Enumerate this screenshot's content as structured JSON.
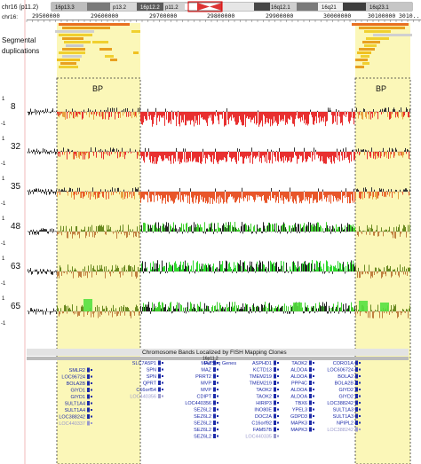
{
  "header": {
    "chr_label": "chr16 (p11.2)",
    "band_labels": [
      "16p13.3",
      "p13.2",
      "16p12.2",
      "p11.2",
      "16q12.1",
      "16q21",
      "16q23.1"
    ],
    "pos_label": "chr16:",
    "positions": [
      "29500000",
      "29600000",
      "29700000",
      "29800000",
      "29900000",
      "30000000",
      "30100000"
    ],
    "pos_truncated": "3010..."
  },
  "segdup": {
    "label_line1": "Segmental",
    "label_line2": "duplications"
  },
  "bp_labels": [
    "BP",
    "BP"
  ],
  "tracks": [
    {
      "name": "8",
      "color": "#e83030"
    },
    {
      "name": "32",
      "color": "#e83030"
    },
    {
      "name": "35",
      "color": "#e8562a"
    },
    {
      "name": "48",
      "color": "#3fcf2e"
    },
    {
      "name": "63",
      "color": "#2ed82e"
    },
    {
      "name": "65",
      "color": "#3fcf2e"
    }
  ],
  "axis_tick": "1",
  "axis_tick_neg": "-1",
  "fish_header": "Chromosome Bands Localized by FISH Mapping Clones",
  "fish_band": "16p11.2",
  "refseq_header": "RefSeq Genes",
  "genes": {
    "col1": [
      "SMLR2",
      "LOC96724",
      "BOLA2B",
      "GIYD1",
      "GIYD1",
      "SULT1A4",
      "SULT1A4",
      "LOC388242",
      "LOC440337"
    ],
    "col2": [
      "SLC7A5P1",
      "SPN",
      "SPN",
      "QPRT",
      "C16orf54",
      "LOC440356"
    ],
    "col3": [
      "MAZ",
      "MAZ",
      "PRRT2",
      "MVP",
      "MVP",
      "CDIPT",
      "LOC440356",
      "SEZ6L2",
      "SEZ6L2",
      "SEZ6L2",
      "SEZ6L2",
      "SEZ6L2"
    ],
    "col4": [
      "ASPHD1",
      "KCTD13",
      "TMEM219",
      "TMEM219",
      "TAOK2",
      "TAOK2",
      "HIRIP3",
      "INO80E",
      "DOC2A",
      "C16orf92",
      "FAM57B",
      "LOC440335"
    ],
    "col5": [
      "TAOK2",
      "ALDOA",
      "ALDOA",
      "PPP4C",
      "ALDOA",
      "ALDOA",
      "TBX6",
      "YPEL3",
      "GDPD3",
      "MAPK3",
      "MAPK3"
    ],
    "col6": [
      "CORO1A",
      "LOC606724",
      "BOLA2",
      "BOLA2B",
      "GIYD2",
      "GIYD2",
      "LOC388242",
      "SULT1A3",
      "SULT1A3",
      "NPIPL2",
      "LOC388242"
    ]
  }
}
